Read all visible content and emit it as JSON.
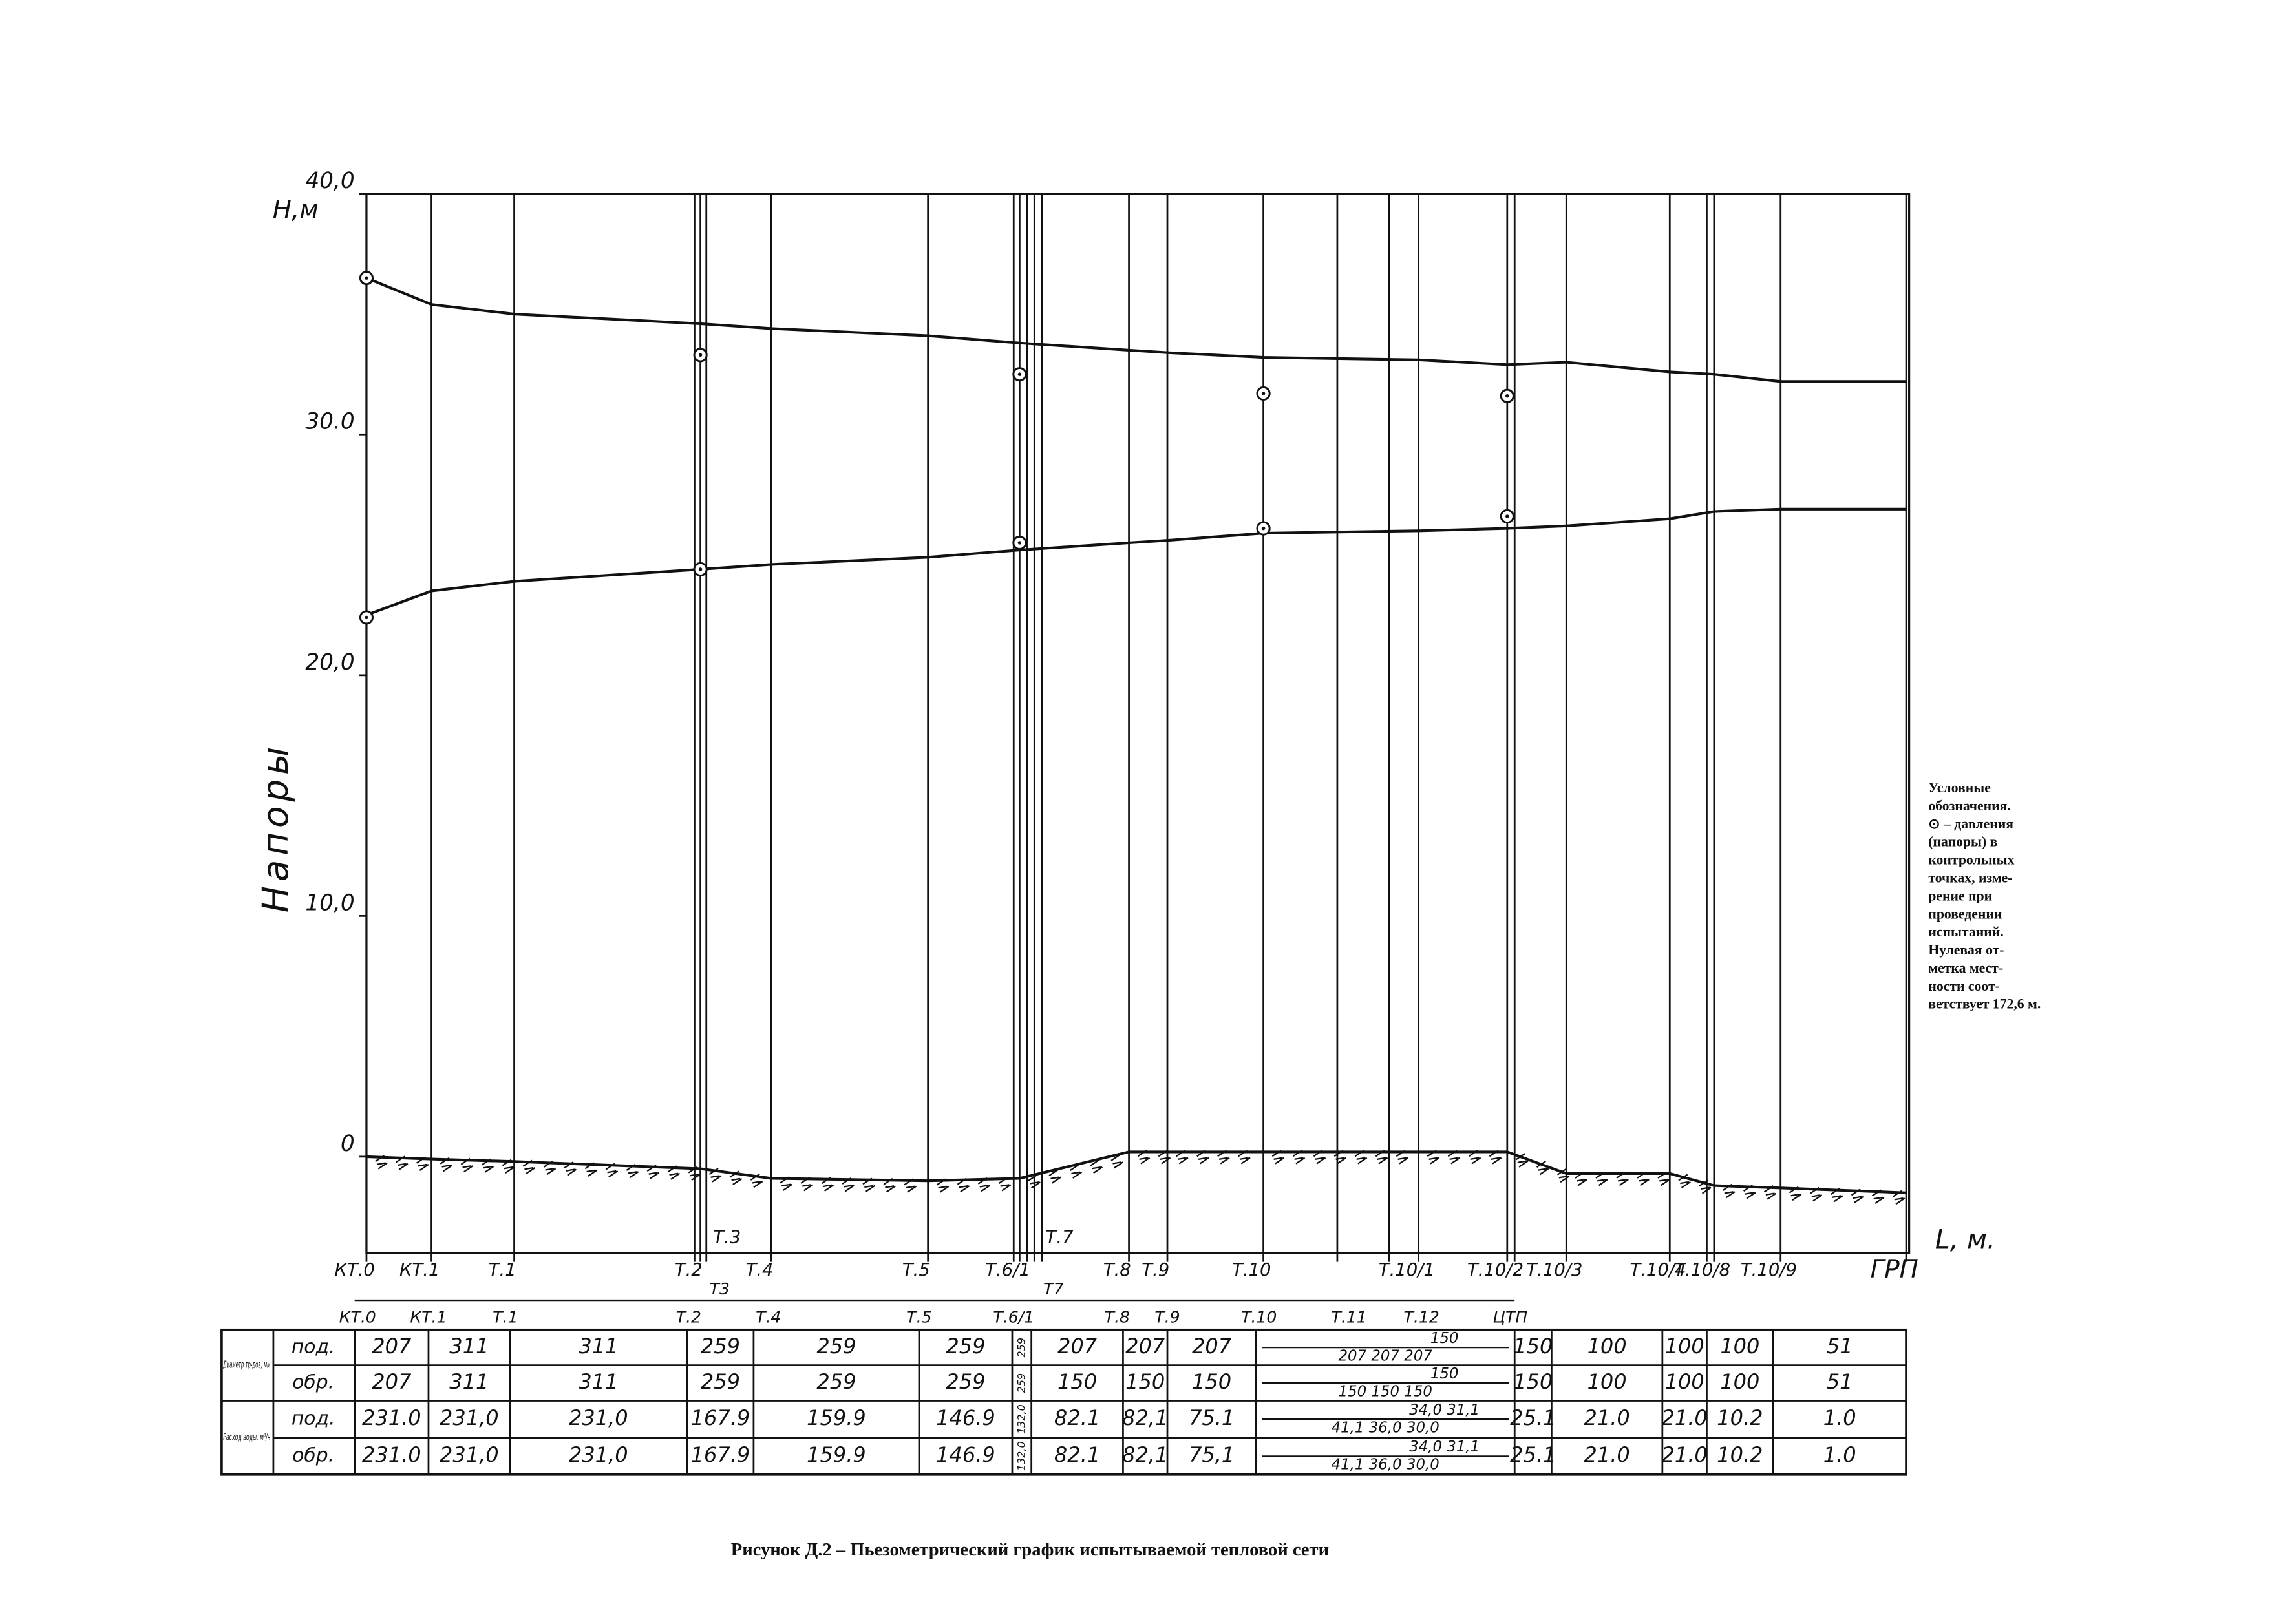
{
  "chart_data": {
    "type": "line",
    "y_label_top": "Н,м",
    "y_title": "Напоры",
    "x_label": "L, м.",
    "categories": [
      "КТ.0",
      "КТ.1",
      "Т.1",
      "Т.2",
      "Т.4",
      "Т.5",
      "Т.6/1",
      "Т.8",
      "Т.9",
      "Т.10",
      "Т.10/1",
      "Т.10/2",
      "Т.10/3",
      "Т.10/4",
      "Т.10/8",
      "Т.10/9",
      "ГРП"
    ],
    "annotations": [
      "Т.3",
      "Т.7"
    ],
    "series": [
      {
        "color": "#111111",
        "line": true,
        "values": [
          36.5,
          35.4,
          35.0,
          34.6,
          34.4,
          34.1,
          33.8,
          33.5,
          33.4,
          33.2,
          33.1,
          32.9,
          33.0,
          32.6,
          32.5,
          32.2,
          32.2
        ]
      },
      {
        "color": "#111111",
        "line": true,
        "values": [
          22.5,
          23.5,
          23.9,
          24.4,
          24.6,
          24.9,
          25.2,
          25.5,
          25.6,
          25.9,
          26.0,
          26.1,
          26.2,
          26.5,
          26.8,
          26.9,
          26.9
        ]
      },
      {
        "color": "#111111",
        "line": true,
        "values": [
          0.0,
          -0.1,
          -0.2,
          -0.5,
          -0.9,
          -1.0,
          -0.9,
          0.2,
          0.2,
          0.2,
          0.2,
          0.2,
          -0.7,
          -0.7,
          -1.2,
          -1.3,
          -1.5
        ]
      },
      {
        "color": "#111111",
        "line": false,
        "marker": "circle",
        "values": [
          36.5,
          null,
          null,
          33.3,
          null,
          null,
          32.5,
          null,
          null,
          31.7,
          null,
          31.6,
          null,
          null,
          null,
          null,
          null
        ]
      },
      {
        "color": "#111111",
        "line": false,
        "marker": "circle",
        "values": [
          22.4,
          null,
          null,
          24.4,
          null,
          null,
          25.5,
          null,
          null,
          26.1,
          null,
          26.6,
          null,
          null,
          null,
          null,
          null
        ]
      }
    ],
    "ylim": [
      -4,
      40
    ],
    "yticks": [
      {
        "value": 0,
        "label": "0"
      },
      {
        "value": 10,
        "label": "10,0"
      },
      {
        "value": 20,
        "label": "20,0"
      },
      {
        "value": 30,
        "label": "30.0"
      },
      {
        "value": 40,
        "label": "40,0"
      }
    ]
  },
  "table": {
    "stations": [
      "КТ.0",
      "КТ.1",
      "Т.1",
      "Т.2",
      "Т.4",
      "Т.5",
      "Т.6/1",
      "Т.8",
      "Т.9",
      "Т.10",
      "Т.11",
      "Т.12",
      "ЦТП"
    ],
    "sub_stations": [
      "Т3",
      "Т7"
    ],
    "group_labels": [
      "Диаметр тр-дов, мм",
      "Расход воды, м³/ч"
    ],
    "rows": [
      {
        "kind": "под.",
        "cells": [
          "207",
          "311",
          "311",
          "259",
          "259",
          "259",
          "259",
          "207",
          "207",
          "207",
          [
            "150",
            "207   207   207"
          ],
          "150",
          "100",
          "100",
          "100",
          "51"
        ]
      },
      {
        "kind": "обр.",
        "cells": [
          "207",
          "311",
          "311",
          "259",
          "259",
          "259",
          "259",
          "150",
          "150",
          "150",
          [
            "150",
            "150   150   150"
          ],
          "150",
          "100",
          "100",
          "100",
          "51"
        ]
      },
      {
        "kind": "под.",
        "cells": [
          "231.0",
          "231,0",
          "231,0",
          "167.9",
          "159.9",
          "146.9",
          "132,0",
          "82.1",
          "82,1",
          "75.1",
          [
            "34,0   31,1",
            "41,1  36,0  30,0"
          ],
          "25.1",
          "21.0",
          "21.0",
          "10.2",
          "1.0"
        ]
      },
      {
        "kind": "обр.",
        "cells": [
          "231.0",
          "231,0",
          "231,0",
          "167.9",
          "159.9",
          "146.9",
          "132,0",
          "82.1",
          "82,1",
          "75,1",
          [
            "34,0   31,1",
            "41,1  36,0  30,0"
          ],
          "25.1",
          "21.0",
          "21.0",
          "10.2",
          "1.0"
        ]
      }
    ]
  },
  "legend_note": [
    "Условные",
    "обозначения.",
    "⊙ – давления",
    "(напоры) в",
    "контрольных",
    "точках, изме-",
    "рение при",
    "проведении",
    "испытаний.",
    "Нулевая от-",
    "метка мест-",
    "ности соот-",
    "ветствует 172,6 м."
  ],
  "caption": "Рисунок Д.2 – Пьезометрический график испытываемой тепловой сети"
}
